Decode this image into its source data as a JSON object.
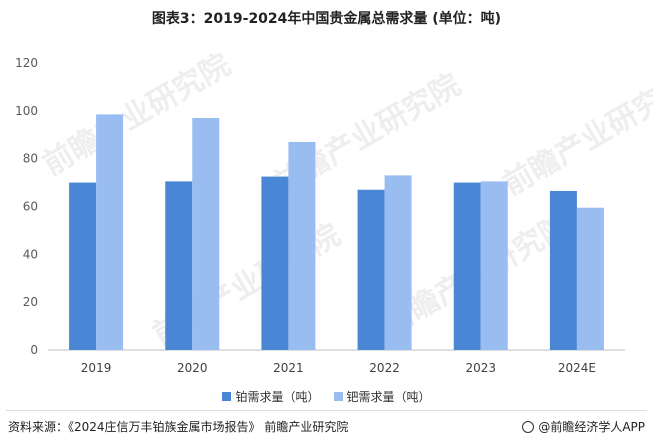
{
  "title": "图表3：2019-2024年中国贵金属总需求量 (单位：吨)",
  "watermark_text": "前瞻产业研究院",
  "footer": {
    "source": "资料来源：《2024庄信万丰铂族金属市场报告》 前瞻产业研究院",
    "brand": "@前瞻经济学人APP"
  },
  "colors": {
    "platinum": "#4a86d6",
    "palladium": "#99bdf0",
    "axis": "#bfbfbf",
    "grid": "#e6e6e6"
  },
  "chart_data": {
    "type": "bar",
    "categories": [
      "2019",
      "2020",
      "2021",
      "2022",
      "2023",
      "2024E"
    ],
    "series": [
      {
        "name": "铂需求量（吨）",
        "values": [
          70,
          70.5,
          72.5,
          67,
          70,
          66.5
        ]
      },
      {
        "name": "钯需求量（吨）",
        "values": [
          98.5,
          97,
          87,
          73,
          70.5,
          59.5
        ]
      }
    ],
    "yticks": [
      "0",
      "20",
      "40",
      "60",
      "80",
      "100",
      "120"
    ],
    "ylim": [
      0,
      120
    ],
    "title": "图表3：2019-2024年中国贵金属总需求量 (单位：吨)",
    "xlabel": "",
    "ylabel": "",
    "grid": false,
    "legend_position": "bottom"
  }
}
